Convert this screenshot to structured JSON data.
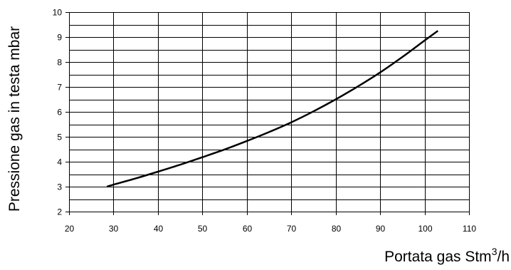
{
  "chart_data": {
    "type": "line",
    "title": "",
    "xlabel": "Portata gas Stm",
    "xlabel_sup": "3",
    "xlabel_suffix": "/h",
    "ylabel": "Pressione gas in testa mbar",
    "xlim": [
      20,
      110
    ],
    "ylim": [
      2,
      10
    ],
    "xticks": [
      20,
      30,
      40,
      50,
      60,
      70,
      80,
      90,
      100,
      110
    ],
    "yticks": [
      2,
      3,
      4,
      5,
      6,
      7,
      8,
      9,
      10
    ],
    "x_tick_labels": [
      "20",
      "30",
      "40",
      "50",
      "60",
      "70",
      "80",
      "90",
      "100",
      "110"
    ],
    "y_tick_labels": [
      "2",
      "3",
      "4",
      "5",
      "6",
      "7",
      "8",
      "9",
      "10"
    ],
    "grid": true,
    "y_minor_grid_step": 0.5,
    "line_color": "#000000",
    "grid_color": "#000000",
    "series": [
      {
        "x": [
          28.5,
          30,
          35,
          40,
          45,
          50,
          55,
          60,
          65,
          70,
          75,
          80,
          85,
          90,
          95,
          100,
          103
        ],
        "y": [
          3.0,
          3.08,
          3.33,
          3.6,
          3.88,
          4.18,
          4.49,
          4.83,
          5.19,
          5.58,
          6.02,
          6.5,
          7.02,
          7.58,
          8.2,
          8.86,
          9.25
        ]
      }
    ]
  }
}
